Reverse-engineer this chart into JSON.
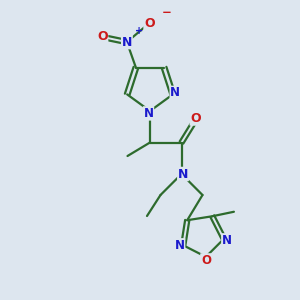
{
  "bg_color": "#dde6ef",
  "bond_color": "#2d6b2d",
  "atom_colors": {
    "N": "#1a1acc",
    "O": "#cc1a1a",
    "C": "#2d6b2d"
  }
}
